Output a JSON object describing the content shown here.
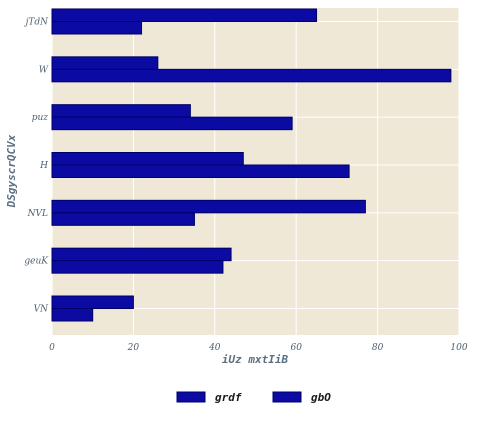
{
  "chart_data": {
    "type": "bar",
    "orientation": "horizontal",
    "categories": [
      "jTdN",
      "W",
      "puz",
      "H",
      "NVL",
      "geuK",
      "VN"
    ],
    "series": [
      {
        "name": "grdf",
        "values": [
          65,
          26,
          34,
          47,
          77,
          44,
          20
        ]
      },
      {
        "name": "gbO",
        "values": [
          22,
          98,
          59,
          73,
          35,
          42,
          10
        ]
      }
    ],
    "xlabel": "iUz mxtIiB",
    "ylabel": "DSgyscrQCVx",
    "xlim": [
      0,
      100
    ],
    "xticks": [
      0,
      20,
      40,
      60,
      80,
      100
    ],
    "grid": true,
    "legend_position": "bottom"
  },
  "colors": {
    "plot_background": "#efe8d7",
    "gridline": "#ffffff",
    "bar_fill": "#0b0ba3",
    "bar_stroke": "#000066",
    "text": "#4d6072"
  }
}
